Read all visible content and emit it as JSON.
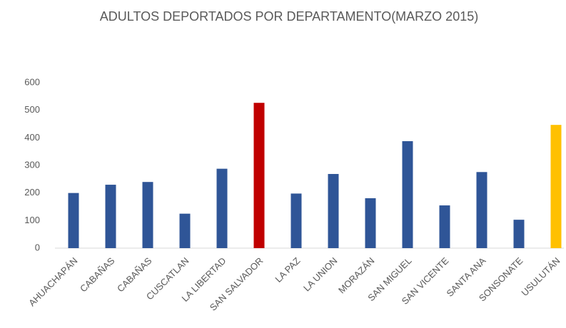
{
  "chart_data": {
    "type": "bar",
    "title": "ADULTOS DEPORTADOS POR DEPARTAMENTO(MARZO 2015)",
    "categories": [
      "AHUACHAPÁN",
      "CABAÑAS",
      "CABAÑAS",
      "CUSCATLAN",
      "LA LIBERTAD",
      "SAN SALVADOR",
      "LA PAZ",
      "LA UNION",
      "MORAZÁN",
      "SAN MIGUEL",
      "SAN VICENTE",
      "SANTA ANA",
      "SONSONATE",
      "USULUTÁN"
    ],
    "values": [
      200,
      230,
      240,
      125,
      288,
      527,
      198,
      269,
      181,
      388,
      155,
      276,
      103,
      447
    ],
    "colors": [
      "#2f5597",
      "#2f5597",
      "#2f5597",
      "#2f5597",
      "#2f5597",
      "#c00000",
      "#2f5597",
      "#2f5597",
      "#2f5597",
      "#2f5597",
      "#2f5597",
      "#2f5597",
      "#2f5597",
      "#ffc000"
    ],
    "ylim": [
      0,
      600
    ],
    "yticks": [
      0,
      100,
      200,
      300,
      400,
      500,
      600
    ],
    "grid": false
  }
}
